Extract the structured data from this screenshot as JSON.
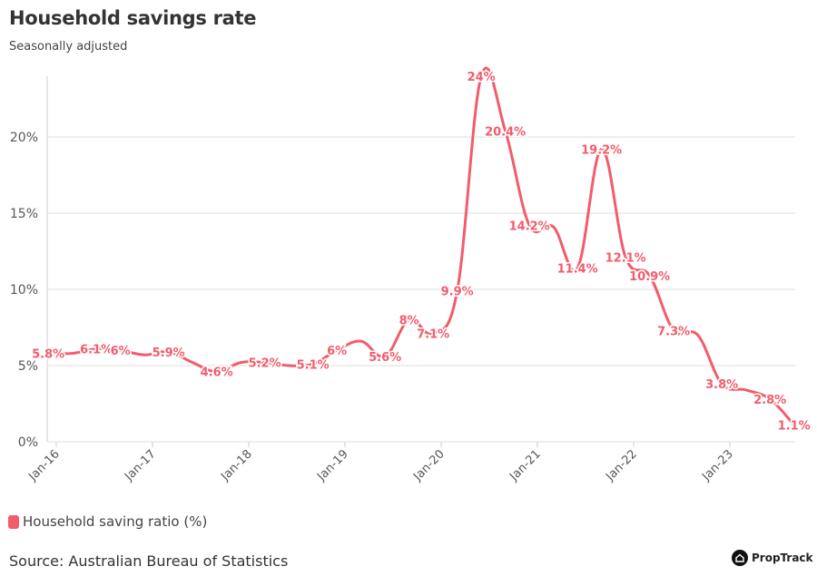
{
  "header": {
    "title": "Household savings rate",
    "subtitle": "Seasonally adjusted"
  },
  "legend": {
    "label": "Household saving ratio (%)"
  },
  "source": "Source: Australian Bureau of Statistics",
  "logo": "PropTrack",
  "colors": {
    "series": "#F25C6B",
    "grid": "#e8e8e8",
    "text": "#333333"
  },
  "chart_data": {
    "type": "line",
    "title": "Household savings rate",
    "subtitle": "Seasonally adjusted",
    "xlabel": "",
    "ylabel": "",
    "ylim": [
      0,
      24
    ],
    "yticks": [
      0,
      5,
      10,
      15,
      20
    ],
    "ytick_labels": [
      "0%",
      "5%",
      "10%",
      "15%",
      "20%"
    ],
    "xticks": [
      "Jan-16",
      "Jan-17",
      "Jan-18",
      "Jan-19",
      "Jan-20",
      "Jan-21",
      "Jan-22",
      "Jan-23"
    ],
    "grid": "horizontal",
    "legend_position": "bottom-left",
    "series": [
      {
        "name": "Household saving ratio (%)",
        "x": [
          "Dec-15",
          "Mar-16",
          "Jun-16",
          "Sep-16",
          "Dec-16",
          "Mar-17",
          "Jun-17",
          "Sep-17",
          "Dec-17",
          "Mar-18",
          "Jun-18",
          "Sep-18",
          "Dec-18",
          "Mar-19",
          "Jun-19",
          "Sep-19",
          "Dec-19",
          "Mar-20",
          "Jun-20",
          "Sep-20",
          "Dec-20",
          "Mar-21",
          "Jun-21",
          "Sep-21",
          "Dec-21",
          "Mar-22",
          "Jun-22",
          "Sep-22",
          "Dec-22",
          "Mar-23",
          "Jun-23",
          "Sep-23"
        ],
        "values": [
          5.8,
          5.8,
          6.1,
          6.0,
          5.7,
          5.9,
          5.2,
          4.6,
          5.2,
          5.2,
          5.0,
          5.1,
          6.0,
          6.6,
          5.6,
          8.0,
          7.1,
          9.9,
          24,
          20.4,
          14.2,
          14.1,
          11.4,
          19.2,
          12.1,
          10.9,
          7.3,
          7.0,
          3.8,
          3.4,
          2.8,
          1.1
        ],
        "data_labels": [
          "5.8%",
          "",
          "6.1%",
          "6%",
          "",
          "5.9%",
          "",
          "4.6%",
          "",
          "5.2%",
          "",
          "5.1%",
          "6%",
          "",
          "5.6%",
          "8%",
          "7.1%",
          "9.9%",
          "24%",
          "20.4%",
          "14.2%",
          "",
          "11.4%",
          "19.2%",
          "12.1%",
          "10.9%",
          "7.3%",
          "",
          "3.8%",
          "",
          "2.8%",
          "1.1%"
        ]
      }
    ]
  }
}
